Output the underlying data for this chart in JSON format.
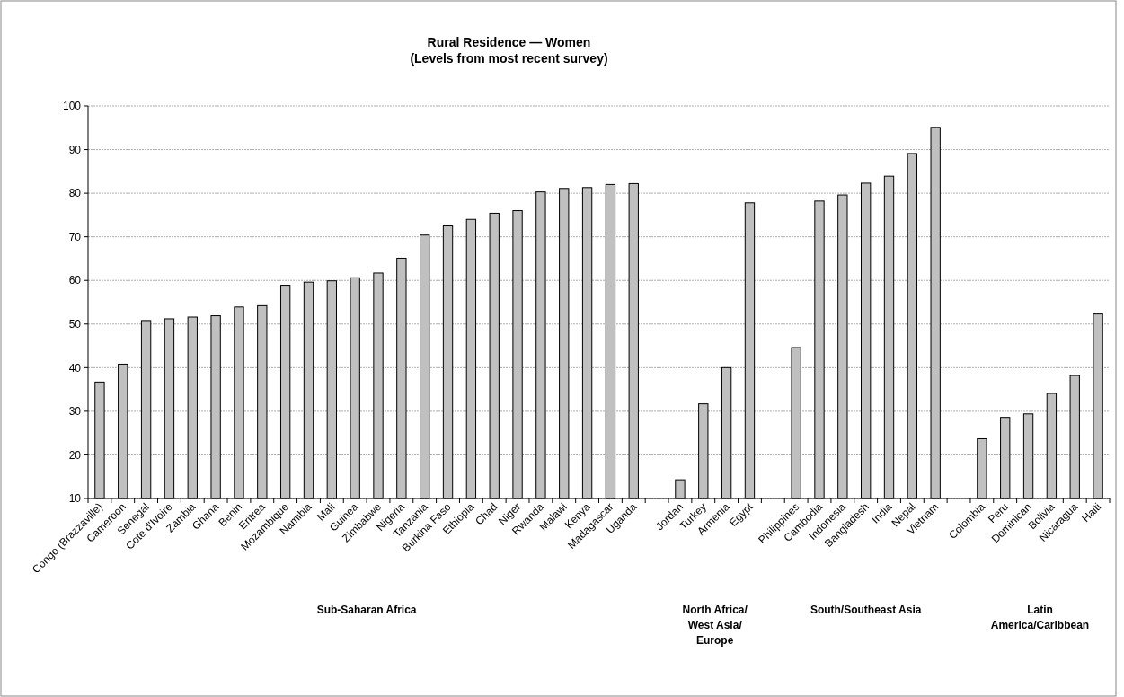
{
  "chart_data": {
    "type": "bar",
    "title": "Rural Residence — Women",
    "subtitle": "(Levels from most recent survey)",
    "categories": [
      "Congo (Brazzaville)",
      "Cameroon",
      "Senegal",
      "Cote d'Ivoire",
      "Zambia",
      "Ghana",
      "Benin",
      "Eritrea",
      "Mozambique",
      "Namibia",
      "Mali",
      "Guinea",
      "Zimbabwe",
      "Nigeria",
      "Tanzania",
      "Burkina Faso",
      "Ethiopia",
      "Chad",
      "Niger",
      "Rwanda",
      "Malawi",
      "Kenya",
      "Madagascar",
      "Uganda",
      null,
      "Jordan",
      "Turkey",
      "Armenia",
      "Egypt",
      null,
      "Philippines",
      "Cambodia",
      "Indonesia",
      "Bangladesh",
      "India",
      "Nepal",
      "Vietnam",
      null,
      "Colombia",
      "Peru",
      "Dominican",
      "Bolivia",
      "Nicaragua",
      "Haiti"
    ],
    "values": [
      36.7,
      40.8,
      50.8,
      51.2,
      51.6,
      51.9,
      53.9,
      54.2,
      58.9,
      59.6,
      59.9,
      60.6,
      61.7,
      65.1,
      70.4,
      72.5,
      74.0,
      75.4,
      76.0,
      80.3,
      81.1,
      81.3,
      82.0,
      82.2,
      null,
      14.3,
      31.7,
      40.0,
      77.8,
      null,
      44.6,
      78.2,
      79.6,
      82.3,
      83.9,
      89.1,
      95.1,
      null,
      23.7,
      28.6,
      29.4,
      34.1,
      38.2,
      52.3
    ],
    "color": "#c0c0c0",
    "ylim": [
      10,
      100
    ],
    "yticks": [
      10,
      20,
      30,
      40,
      50,
      60,
      70,
      80,
      90,
      100
    ],
    "grid": "y",
    "annotations": [
      "Sub-Saharan Africa",
      "North Africa/\nWest Asia/\nEurope",
      "South/Southeast Asia",
      "Latin\nAmerica/Caribbean"
    ]
  }
}
